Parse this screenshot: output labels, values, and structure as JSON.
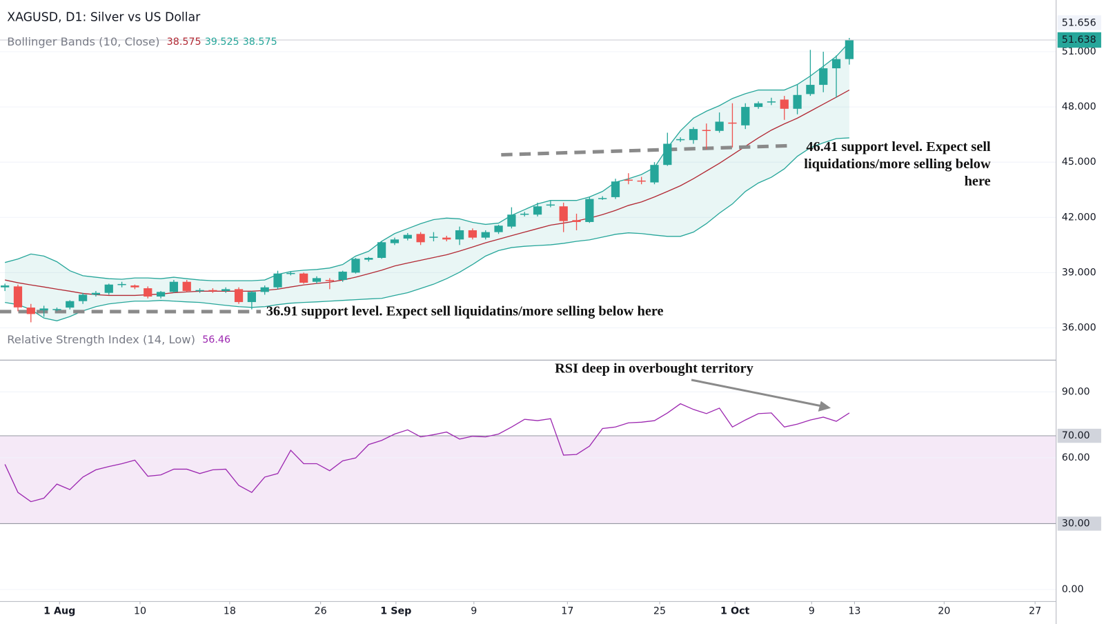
{
  "chart_data": [
    {
      "type": "candlestick",
      "title": "XAGUSD, D1: Silver vs US Dollar",
      "indicator": "Bollinger Bands (10, Close)",
      "indicator_values": [
        38.575,
        39.525,
        38.575
      ],
      "indicator_colors": [
        "#b22833",
        "#26a69a",
        "#26a69a"
      ],
      "up_color": "#26a69a",
      "down_color": "#ef5350",
      "xlim": [
        -0.38,
        80.92
      ],
      "ylim": [
        34.28,
        53.81
      ],
      "yticks": [
        {
          "value": 51,
          "label": "51.000"
        },
        {
          "value": 48,
          "label": "48.000"
        },
        {
          "value": 45,
          "label": "45.000"
        },
        {
          "value": 42,
          "label": "42.000"
        },
        {
          "value": 39,
          "label": "39.000"
        },
        {
          "value": 36,
          "label": "36.000"
        }
      ],
      "grid": true,
      "last_price": 51.638,
      "high_label": 51.656,
      "ohlc": [
        [
          38.2,
          38.4,
          38.0,
          38.3
        ],
        [
          38.25,
          38.35,
          36.9,
          37.11
        ],
        [
          37.1,
          37.3,
          36.3,
          36.75
        ],
        [
          36.95,
          37.2,
          36.6,
          37.05
        ],
        [
          37.0,
          37.1,
          36.9,
          37.02
        ],
        [
          37.1,
          37.5,
          37.0,
          37.45
        ],
        [
          37.45,
          37.9,
          37.3,
          37.8
        ],
        [
          37.8,
          38.0,
          37.7,
          37.9
        ],
        [
          37.9,
          38.4,
          37.8,
          38.35
        ],
        [
          38.35,
          38.5,
          38.2,
          38.38
        ],
        [
          38.3,
          38.35,
          38.1,
          38.2
        ],
        [
          38.15,
          38.25,
          37.6,
          37.7
        ],
        [
          37.7,
          38.0,
          37.6,
          37.95
        ],
        [
          37.95,
          38.6,
          37.9,
          38.5
        ],
        [
          38.5,
          38.6,
          37.95,
          38.0
        ],
        [
          38.0,
          38.15,
          37.9,
          38.05
        ],
        [
          38.05,
          38.15,
          37.9,
          38.0
        ],
        [
          38.0,
          38.2,
          37.9,
          38.1
        ],
        [
          38.1,
          38.2,
          37.3,
          37.4
        ],
        [
          37.4,
          38.0,
          37.0,
          37.95
        ],
        [
          37.95,
          38.3,
          37.8,
          38.2
        ],
        [
          38.2,
          39.1,
          38.1,
          38.95
        ],
        [
          38.95,
          39.05,
          38.85,
          38.98
        ],
        [
          38.95,
          39.0,
          38.4,
          38.45
        ],
        [
          38.5,
          38.8,
          38.4,
          38.7
        ],
        [
          38.6,
          38.7,
          38.1,
          38.55
        ],
        [
          38.6,
          39.1,
          38.5,
          39.05
        ],
        [
          39.0,
          39.8,
          38.95,
          39.75
        ],
        [
          39.7,
          39.85,
          39.6,
          39.8
        ],
        [
          39.8,
          40.7,
          39.75,
          40.65
        ],
        [
          40.6,
          40.9,
          40.5,
          40.8
        ],
        [
          40.85,
          41.15,
          40.75,
          41.05
        ],
        [
          41.1,
          41.2,
          40.5,
          40.65
        ],
        [
          40.92,
          41.2,
          40.7,
          40.95
        ],
        [
          40.9,
          41.0,
          40.7,
          40.8
        ],
        [
          40.8,
          41.5,
          40.5,
          41.3
        ],
        [
          41.3,
          41.4,
          40.8,
          40.9
        ],
        [
          40.9,
          41.3,
          40.8,
          41.2
        ],
        [
          41.2,
          41.6,
          41.1,
          41.55
        ],
        [
          41.5,
          42.55,
          41.4,
          42.15
        ],
        [
          42.18,
          42.3,
          42.05,
          42.2
        ],
        [
          42.15,
          42.8,
          42.05,
          42.6
        ],
        [
          42.68,
          42.9,
          42.55,
          42.7
        ],
        [
          42.6,
          42.8,
          41.2,
          41.8
        ],
        [
          41.85,
          42.2,
          41.3,
          41.75
        ],
        [
          41.75,
          43.1,
          41.7,
          43.0
        ],
        [
          43.02,
          43.15,
          42.95,
          43.05
        ],
        [
          43.1,
          44.1,
          43.0,
          43.95
        ],
        [
          44.05,
          44.4,
          43.8,
          44.0
        ],
        [
          44.0,
          44.2,
          43.8,
          43.95
        ],
        [
          43.9,
          45.0,
          43.8,
          44.85
        ],
        [
          44.85,
          46.6,
          44.8,
          46.0
        ],
        [
          46.22,
          46.35,
          46.1,
          46.25
        ],
        [
          46.2,
          46.9,
          46.0,
          46.8
        ],
        [
          46.75,
          47.1,
          45.7,
          46.7
        ],
        [
          46.7,
          47.7,
          46.6,
          47.2
        ],
        [
          47.15,
          48.2,
          45.8,
          47.1
        ],
        [
          47.0,
          48.2,
          46.8,
          48.0
        ],
        [
          48.0,
          48.3,
          47.9,
          48.2
        ],
        [
          48.25,
          48.5,
          48.1,
          48.3
        ],
        [
          48.4,
          48.6,
          47.3,
          47.9
        ],
        [
          47.9,
          49.2,
          47.6,
          48.65
        ],
        [
          48.7,
          51.1,
          48.6,
          49.2
        ],
        [
          49.2,
          51.0,
          48.8,
          50.1
        ],
        [
          50.1,
          50.8,
          48.5,
          50.6
        ],
        [
          50.6,
          51.75,
          50.3,
          51.638
        ]
      ],
      "bands": {
        "color": "#26a69a",
        "basis_color": "#b22833",
        "fill": "#26a69a",
        "upper": [
          39.55,
          39.74,
          40.01,
          39.9,
          39.59,
          39.1,
          38.83,
          38.75,
          38.67,
          38.64,
          38.71,
          38.71,
          38.67,
          38.75,
          38.67,
          38.6,
          38.56,
          38.56,
          38.56,
          38.56,
          38.6,
          38.9,
          39.06,
          39.13,
          39.17,
          39.25,
          39.44,
          39.9,
          40.16,
          40.7,
          41.12,
          41.39,
          41.66,
          41.88,
          41.96,
          41.92,
          41.73,
          41.62,
          41.69,
          42.11,
          42.42,
          42.73,
          42.92,
          42.92,
          42.92,
          43.11,
          43.41,
          43.91,
          44.1,
          44.33,
          44.71,
          45.78,
          46.7,
          47.39,
          47.77,
          48.07,
          48.46,
          48.72,
          48.92,
          48.92,
          48.92,
          49.22,
          49.68,
          50.21,
          50.75,
          51.51
        ],
        "basis": [
          38.6,
          38.45,
          38.33,
          38.22,
          38.1,
          37.99,
          37.87,
          37.8,
          37.76,
          37.76,
          37.76,
          37.8,
          37.83,
          37.91,
          37.95,
          37.99,
          37.99,
          37.99,
          37.99,
          37.99,
          38.03,
          38.1,
          38.22,
          38.33,
          38.41,
          38.48,
          38.6,
          38.75,
          38.94,
          39.13,
          39.36,
          39.52,
          39.67,
          39.82,
          39.97,
          40.17,
          40.39,
          40.62,
          40.81,
          41.01,
          41.2,
          41.39,
          41.58,
          41.69,
          41.81,
          41.96,
          42.15,
          42.38,
          42.65,
          42.84,
          43.11,
          43.41,
          43.72,
          44.1,
          44.52,
          44.94,
          45.4,
          45.86,
          46.32,
          46.74,
          47.08,
          47.39,
          47.77,
          48.15,
          48.53,
          48.92
        ],
        "lower": [
          37.38,
          37.26,
          36.99,
          36.53,
          36.38,
          36.61,
          36.92,
          37.15,
          37.3,
          37.38,
          37.45,
          37.45,
          37.49,
          37.45,
          37.41,
          37.38,
          37.3,
          37.22,
          37.15,
          37.11,
          37.15,
          37.26,
          37.34,
          37.38,
          37.41,
          37.45,
          37.49,
          37.53,
          37.57,
          37.6,
          37.76,
          37.91,
          38.14,
          38.37,
          38.67,
          39.02,
          39.44,
          39.9,
          40.2,
          40.36,
          40.43,
          40.47,
          40.51,
          40.59,
          40.7,
          40.78,
          40.93,
          41.08,
          41.16,
          41.12,
          41.04,
          40.97,
          40.97,
          41.2,
          41.66,
          42.23,
          42.73,
          43.41,
          43.87,
          44.18,
          44.64,
          45.32,
          45.78,
          46.05,
          46.28,
          46.32
        ]
      },
      "annotations": [
        {
          "lines": [
            "36.91 support level. Expect sell liquidatins/more selling below here"
          ],
          "x": [
            -0.38,
            19.7
          ],
          "y": [
            36.88,
            36.88
          ]
        },
        {
          "lines": [
            "46.41 support level. Expect sell",
            "liquidations/more selling below",
            "here"
          ],
          "x": [
            38.2,
            60.6
          ],
          "y": [
            45.4,
            45.9
          ]
        }
      ]
    },
    {
      "type": "line",
      "title": "Relative Strength Index (14, Low)",
      "legend_value": 56.46,
      "color": "#9c27b0",
      "band_color": "#9c27b0",
      "xlim": [
        -0.38,
        80.92
      ],
      "ylim": [
        -5.45,
        104.1
      ],
      "yticks": [
        {
          "value": 90,
          "label": "90.00"
        },
        {
          "value": 60,
          "label": "60.00"
        },
        {
          "value": 0,
          "label": "0.00"
        }
      ],
      "bands": [
        {
          "value": 70,
          "label": "70.00"
        },
        {
          "value": 30,
          "label": "30.00"
        }
      ],
      "grid": true,
      "xticks": [
        {
          "value": 4.2,
          "label": "1 Aug"
        },
        {
          "value": 10.4,
          "label": "10"
        },
        {
          "value": 17.3,
          "label": "18"
        },
        {
          "value": 24.3,
          "label": "26"
        },
        {
          "value": 30.1,
          "label": "1 Sep"
        },
        {
          "value": 36.1,
          "label": "9"
        },
        {
          "value": 43.3,
          "label": "17"
        },
        {
          "value": 50.4,
          "label": "25"
        },
        {
          "value": 56.2,
          "label": "1 Oct"
        },
        {
          "value": 62.1,
          "label": "9"
        },
        {
          "value": 65.4,
          "label": "13"
        },
        {
          "value": 72.3,
          "label": "20"
        },
        {
          "value": 79.3,
          "label": "27"
        }
      ],
      "values": [
        57.0,
        44.2,
        40.0,
        41.6,
        48.0,
        45.5,
        51.2,
        54.5,
        56.0,
        57.3,
        58.9,
        51.6,
        52.2,
        54.8,
        54.8,
        52.8,
        54.5,
        54.8,
        47.4,
        44.2,
        51.2,
        52.8,
        63.4,
        57.3,
        57.3,
        54.1,
        58.6,
        59.9,
        66.0,
        67.9,
        70.8,
        72.7,
        69.5,
        70.5,
        71.7,
        68.5,
        69.8,
        69.5,
        70.8,
        74.0,
        77.5,
        76.9,
        77.8,
        61.2,
        61.5,
        65.3,
        73.3,
        74.0,
        75.9,
        76.2,
        76.9,
        80.4,
        84.6,
        82.0,
        80.1,
        82.6,
        74.0,
        77.2,
        80.1,
        80.4,
        74.0,
        75.3,
        77.2,
        78.5,
        76.6,
        80.4
      ],
      "annotation": "RSI deep in overbought territory"
    }
  ]
}
